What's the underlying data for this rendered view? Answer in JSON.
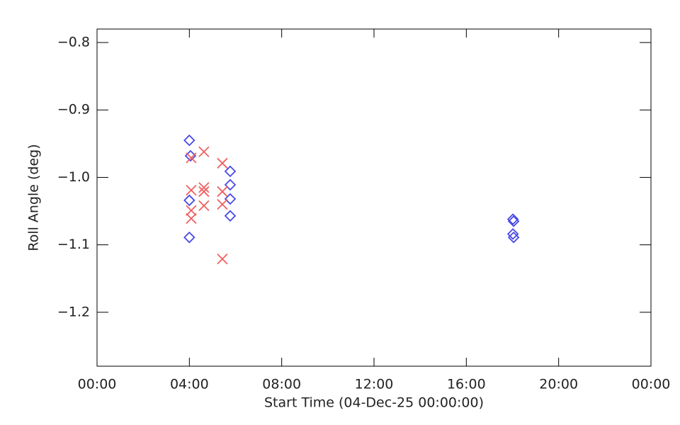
{
  "chart_data": {
    "type": "scatter",
    "xlabel": "Start Time (04-Dec-25 00:00:00)",
    "ylabel": "Roll Angle (deg)",
    "xlim": [
      0,
      24
    ],
    "xticks": [
      {
        "value": 0,
        "label": "00:00"
      },
      {
        "value": 4,
        "label": "04:00"
      },
      {
        "value": 8,
        "label": "08:00"
      },
      {
        "value": 12,
        "label": "12:00"
      },
      {
        "value": 16,
        "label": "16:00"
      },
      {
        "value": 20,
        "label": "20:00"
      },
      {
        "value": 24,
        "label": "00:00"
      }
    ],
    "ylim": [
      -1.28,
      -0.78
    ],
    "yticks": [
      {
        "value": -0.8,
        "label": "−0.8"
      },
      {
        "value": -0.9,
        "label": "−0.9"
      },
      {
        "value": -1.0,
        "label": "−1.0"
      },
      {
        "value": -1.1,
        "label": "−1.1"
      },
      {
        "value": -1.2,
        "label": "−1.2"
      }
    ],
    "series": [
      {
        "color": "#4a4ae6",
        "marker": "diamond",
        "x": [
          4.0,
          4.05,
          4.0,
          4.0,
          5.77,
          5.77,
          5.77,
          5.77,
          18.02,
          18.05,
          18.02,
          18.05
        ],
        "values": [
          -0.945,
          -0.968,
          -1.034,
          -1.089,
          -0.991,
          -1.011,
          -1.032,
          -1.057,
          -1.062,
          -1.065,
          -1.084,
          -1.089
        ]
      },
      {
        "color": "#f06060",
        "marker": "x",
        "x": [
          4.08,
          4.08,
          4.08,
          4.08,
          4.63,
          4.63,
          4.63,
          4.63,
          5.43,
          5.43,
          5.43,
          5.43
        ],
        "values": [
          -0.971,
          -1.019,
          -1.049,
          -1.061,
          -0.962,
          -1.015,
          -1.021,
          -1.042,
          -0.979,
          -1.021,
          -1.04,
          -1.121
        ]
      }
    ]
  }
}
